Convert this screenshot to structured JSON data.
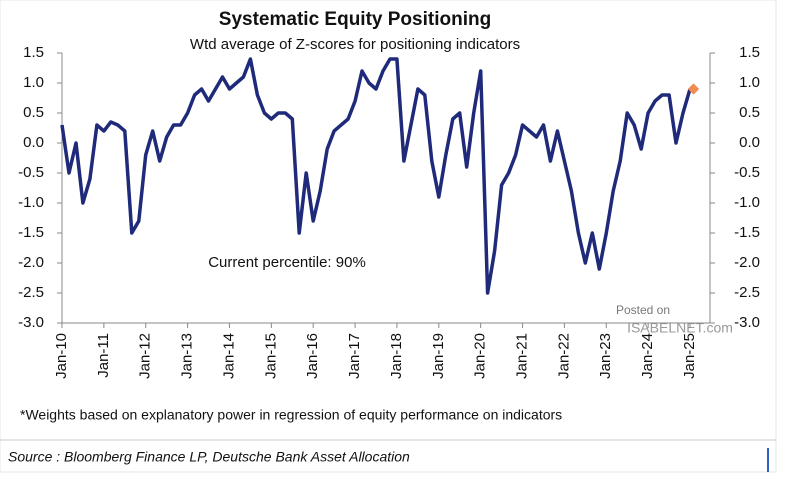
{
  "chart_data": {
    "type": "line",
    "title": "Systematic Equity Positioning",
    "subtitle": "Wtd average of Z-scores for positioning indicators",
    "annotation": "Current percentile: 90%",
    "footnote": "*Weights based on explanatory power in regression of equity performance on indicators",
    "source": "Source : Bloomberg Finance LP, Deutsche Bank Asset Allocation",
    "watermark": [
      "Posted on",
      "ISABELNET.com"
    ],
    "x": [
      "2010-01",
      "2010-03",
      "2010-05",
      "2010-07",
      "2010-09",
      "2010-11",
      "2011-01",
      "2011-03",
      "2011-05",
      "2011-07",
      "2011-09",
      "2011-11",
      "2012-01",
      "2012-03",
      "2012-05",
      "2012-07",
      "2012-09",
      "2012-11",
      "2013-01",
      "2013-03",
      "2013-05",
      "2013-07",
      "2013-09",
      "2013-11",
      "2014-01",
      "2014-03",
      "2014-05",
      "2014-07",
      "2014-09",
      "2014-11",
      "2015-01",
      "2015-03",
      "2015-05",
      "2015-07",
      "2015-09",
      "2015-11",
      "2016-01",
      "2016-03",
      "2016-05",
      "2016-07",
      "2016-09",
      "2016-11",
      "2017-01",
      "2017-03",
      "2017-05",
      "2017-07",
      "2017-09",
      "2017-11",
      "2018-01",
      "2018-03",
      "2018-05",
      "2018-07",
      "2018-09",
      "2018-11",
      "2019-01",
      "2019-03",
      "2019-05",
      "2019-07",
      "2019-09",
      "2019-11",
      "2020-01",
      "2020-03",
      "2020-05",
      "2020-07",
      "2020-09",
      "2020-11",
      "2021-01",
      "2021-03",
      "2021-05",
      "2021-07",
      "2021-09",
      "2021-11",
      "2022-01",
      "2022-03",
      "2022-05",
      "2022-07",
      "2022-09",
      "2022-11",
      "2023-01",
      "2023-03",
      "2023-05",
      "2023-07",
      "2023-09",
      "2023-11",
      "2024-01",
      "2024-03",
      "2024-05",
      "2024-07",
      "2024-09",
      "2024-11",
      "2025-01"
    ],
    "series": [
      {
        "color": "#1f2a7a",
        "values": [
          0.3,
          -0.5,
          0.0,
          -1.0,
          -0.6,
          0.3,
          0.2,
          0.35,
          0.3,
          0.2,
          -1.5,
          -1.3,
          -0.2,
          0.2,
          -0.3,
          0.1,
          0.3,
          0.3,
          0.5,
          0.8,
          0.9,
          0.7,
          0.9,
          1.1,
          0.9,
          1.0,
          1.1,
          1.4,
          0.8,
          0.5,
          0.4,
          0.5,
          0.5,
          0.4,
          -1.5,
          -0.5,
          -1.3,
          -0.8,
          -0.1,
          0.2,
          0.3,
          0.4,
          0.7,
          1.2,
          1.0,
          0.9,
          1.2,
          1.4,
          1.4,
          -0.3,
          0.3,
          0.9,
          0.8,
          -0.3,
          -0.9,
          -0.2,
          0.4,
          0.5,
          -0.4,
          0.5,
          1.2,
          -2.5,
          -1.8,
          -0.7,
          -0.5,
          -0.2,
          0.3,
          0.2,
          0.1,
          0.3,
          -0.3,
          0.2,
          -0.3,
          -0.8,
          -1.5,
          -2.0,
          -1.5,
          -2.1,
          -1.5,
          -0.8,
          -0.3,
          0.5,
          0.3,
          -0.1,
          0.5,
          0.7,
          0.8,
          0.8,
          0.0,
          0.5,
          0.9
        ]
      }
    ],
    "current": {
      "x": "2025-02",
      "value": 0.9,
      "color": "#f08c50"
    },
    "xlim": [
      "2010-01",
      "2025-01"
    ],
    "xticks": [
      {
        "value": "2010-01",
        "label": "Jan-10"
      },
      {
        "value": "2011-01",
        "label": "Jan-11"
      },
      {
        "value": "2012-01",
        "label": "Jan-12"
      },
      {
        "value": "2013-01",
        "label": "Jan-13"
      },
      {
        "value": "2014-01",
        "label": "Jan-14"
      },
      {
        "value": "2015-01",
        "label": "Jan-15"
      },
      {
        "value": "2016-01",
        "label": "Jan-16"
      },
      {
        "value": "2017-01",
        "label": "Jan-17"
      },
      {
        "value": "2018-01",
        "label": "Jan-18"
      },
      {
        "value": "2019-01",
        "label": "Jan-19"
      },
      {
        "value": "2020-01",
        "label": "Jan-20"
      },
      {
        "value": "2021-01",
        "label": "Jan-21"
      },
      {
        "value": "2022-01",
        "label": "Jan-22"
      },
      {
        "value": "2023-01",
        "label": "Jan-23"
      },
      {
        "value": "2024-01",
        "label": "Jan-24"
      },
      {
        "value": "2025-01",
        "label": "Jan-25"
      }
    ],
    "ylim": [
      -3.0,
      1.5
    ],
    "yticks": [
      {
        "value": 1.5,
        "label": "1.5"
      },
      {
        "value": 1.0,
        "label": "1.0"
      },
      {
        "value": 0.5,
        "label": "0.5"
      },
      {
        "value": 0.0,
        "label": "0.0"
      },
      {
        "value": -0.5,
        "label": "-0.5"
      },
      {
        "value": -1.0,
        "label": "-1.0"
      },
      {
        "value": -1.5,
        "label": "-1.5"
      },
      {
        "value": -2.0,
        "label": "-2.0"
      },
      {
        "value": -2.5,
        "label": "-2.5"
      },
      {
        "value": -3.0,
        "label": "-3.0"
      }
    ],
    "y2lim": [
      -3.0,
      1.5
    ],
    "y2ticks": [
      {
        "value": 1.5,
        "label": "1.5"
      },
      {
        "value": 1.0,
        "label": "1.0"
      },
      {
        "value": 0.5,
        "label": "0.5"
      },
      {
        "value": 0.0,
        "label": "0.0"
      },
      {
        "value": -0.5,
        "label": "-0.5"
      },
      {
        "value": -1.0,
        "label": "-1.0"
      },
      {
        "value": -1.5,
        "label": "-1.5"
      },
      {
        "value": -2.0,
        "label": "-2.0"
      },
      {
        "value": -2.5,
        "label": "-2.5"
      },
      {
        "value": -3.0,
        "label": "-3.0"
      }
    ]
  }
}
